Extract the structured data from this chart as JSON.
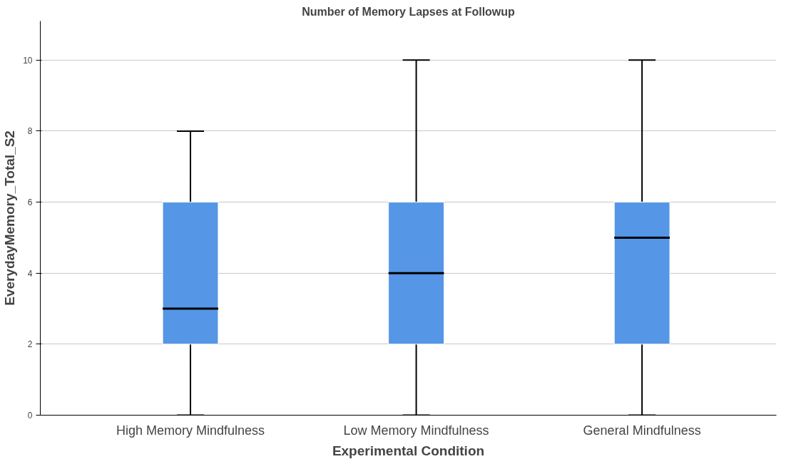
{
  "chart_data": {
    "type": "box",
    "title": "Number of Memory Lapses at Followup",
    "xlabel": "Experimental Condition",
    "ylabel": "EverydayMemory_Total_S2",
    "categories": [
      "High Memory Mindfulness",
      "Low Memory Mindfulness",
      "General Mindfulness"
    ],
    "series": [
      {
        "color": "#5596e6",
        "boxes": [
          {
            "low": 0,
            "q1": 2,
            "median": 3,
            "q3": 6,
            "high": 8
          },
          {
            "low": 0,
            "q1": 2,
            "median": 4,
            "q3": 6,
            "high": 10
          },
          {
            "low": 0,
            "q1": 2,
            "median": 5,
            "q3": 6,
            "high": 10
          }
        ]
      }
    ],
    "ylim": [
      0,
      11.1
    ],
    "yticks": [
      0,
      2,
      4,
      6,
      8,
      10
    ],
    "grid": "y"
  }
}
